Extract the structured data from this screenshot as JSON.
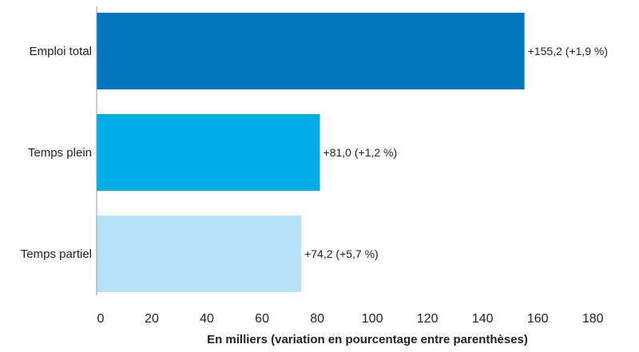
{
  "chart_data": {
    "type": "bar",
    "orientation": "horizontal",
    "categories": [
      "Emploi total",
      "Temps plein",
      "Temps partiel"
    ],
    "values": [
      155.2,
      81.0,
      74.2
    ],
    "data_labels": [
      "+155,2 (+1,9 %)",
      "+81,0 (+1,2 %)",
      "+74,2 (+5,7 %)"
    ],
    "colors": [
      "#0277bf",
      "#00aee6",
      "#b4e2f9"
    ],
    "xlabel": "En milliers (variation en pourcentage entre parenthèses)",
    "ylabel": "",
    "title": "",
    "xlim": [
      0,
      195
    ],
    "xticks": [
      0,
      20,
      40,
      60,
      80,
      100,
      120,
      140,
      160,
      180
    ],
    "grid": false,
    "legend": "none"
  }
}
